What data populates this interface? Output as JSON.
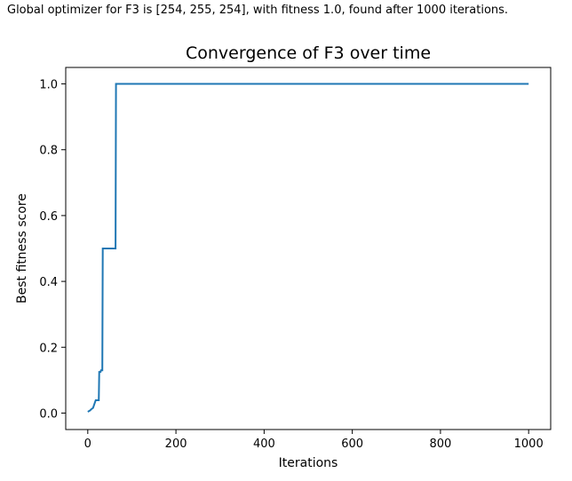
{
  "output": {
    "text": "Global optimizer for F3 is [254, 255, 254], with fitness 1.0, found after 1000 iterations."
  },
  "chart_data": {
    "type": "line",
    "title": "Convergence of F3 over time",
    "xlabel": "Iterations",
    "ylabel": "Best fitness score",
    "xlim": [
      -50,
      1050
    ],
    "ylim": [
      -0.05,
      1.05
    ],
    "xticks": [
      0,
      200,
      400,
      600,
      800,
      1000
    ],
    "yticks": [
      0.0,
      0.2,
      0.4,
      0.6,
      0.8,
      1.0
    ],
    "grid": false,
    "color": "#1f77b4",
    "series": [
      {
        "x": [
          0,
          5,
          8,
          12,
          16,
          18,
          21,
          25,
          26,
          29,
          30,
          33,
          34,
          37,
          38,
          45,
          50,
          55,
          60,
          63,
          64,
          1000
        ],
        "y": [
          0.0039,
          0.0078,
          0.0117,
          0.0156,
          0.0313,
          0.0391,
          0.0391,
          0.0391,
          0.125,
          0.125,
          0.13,
          0.13,
          0.5,
          0.5,
          0.5,
          0.5,
          0.5,
          0.5,
          0.5,
          0.5,
          1.0,
          1.0
        ]
      }
    ]
  }
}
